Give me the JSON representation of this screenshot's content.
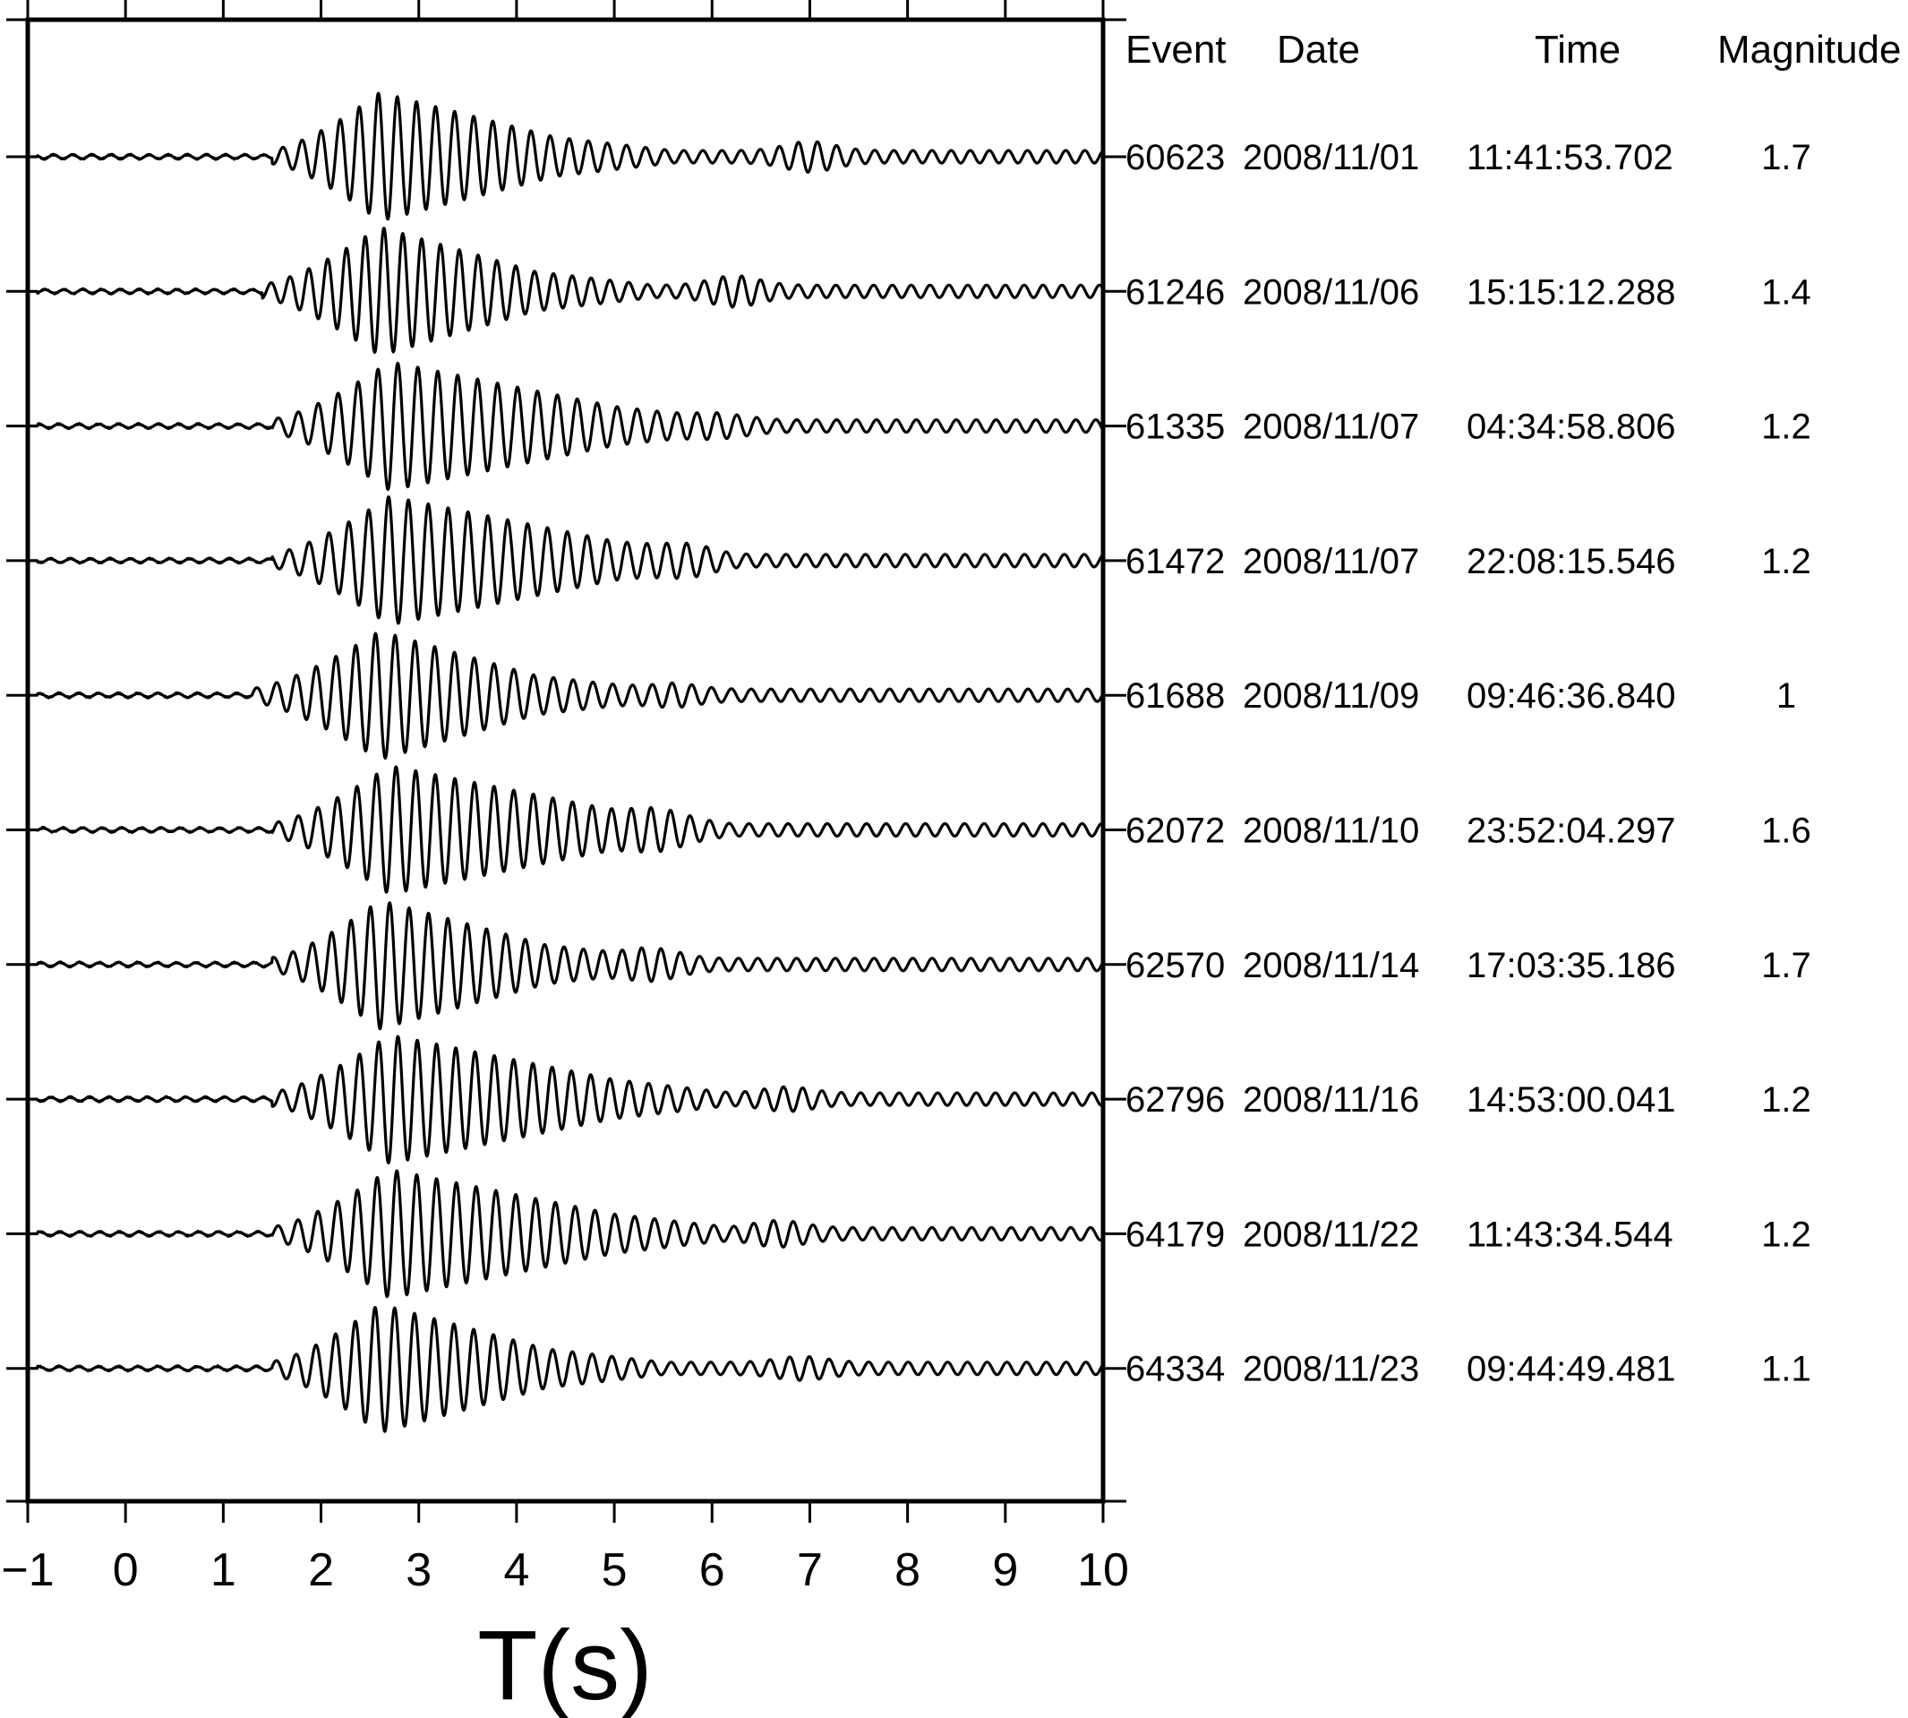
{
  "chart_data": {
    "type": "line",
    "xlabel": "T(s)",
    "ylabel": "",
    "xlim": [
      -1,
      10
    ],
    "x_ticks": [
      "−1",
      "0",
      "1",
      "2",
      "3",
      "4",
      "5",
      "6",
      "7",
      "8",
      "9",
      "10"
    ],
    "grid": false,
    "table_headers": [
      "Event",
      "Date",
      "Time",
      "Magnitude"
    ],
    "waveform_color": "#000000",
    "series": [
      {
        "event": "60623",
        "date": "2008/11/01",
        "time": "11:41:53.702",
        "magnitude": "1.7",
        "arrival_s": 1.6,
        "peak_s": 2.6,
        "coda_end_s": 4.4
      },
      {
        "event": "61246",
        "date": "2008/11/06",
        "time": "15:15:12.288",
        "magnitude": "1.4",
        "arrival_s": 1.5,
        "peak_s": 2.6,
        "coda_end_s": 4.2
      },
      {
        "event": "61335",
        "date": "2008/11/07",
        "time": "04:34:58.806",
        "magnitude": "1.2",
        "arrival_s": 1.6,
        "peak_s": 2.7,
        "coda_end_s": 5.0
      },
      {
        "event": "61472",
        "date": "2008/11/07",
        "time": "22:08:15.546",
        "magnitude": "1.2",
        "arrival_s": 1.6,
        "peak_s": 2.7,
        "coda_end_s": 5.0
      },
      {
        "event": "61688",
        "date": "2008/11/09",
        "time": "09:46:36.840",
        "magnitude": "1",
        "arrival_s": 1.4,
        "peak_s": 2.6,
        "coda_end_s": 4.2
      },
      {
        "event": "62072",
        "date": "2008/11/10",
        "time": "23:52:04.297",
        "magnitude": "1.6",
        "arrival_s": 1.6,
        "peak_s": 2.7,
        "coda_end_s": 5.0
      },
      {
        "event": "62570",
        "date": "2008/11/14",
        "time": "17:03:35.186",
        "magnitude": "1.7",
        "arrival_s": 1.6,
        "peak_s": 2.6,
        "coda_end_s": 4.3
      },
      {
        "event": "62796",
        "date": "2008/11/16",
        "time": "14:53:00.041",
        "magnitude": "1.2",
        "arrival_s": 1.6,
        "peak_s": 2.7,
        "coda_end_s": 5.0
      },
      {
        "event": "64179",
        "date": "2008/11/22",
        "time": "11:43:34.544",
        "magnitude": "1.2",
        "arrival_s": 1.6,
        "peak_s": 2.7,
        "coda_end_s": 5.0
      },
      {
        "event": "64334",
        "date": "2008/11/23",
        "time": "09:44:49.481",
        "magnitude": "1.1",
        "arrival_s": 1.6,
        "peak_s": 2.6,
        "coda_end_s": 4.3
      }
    ]
  }
}
